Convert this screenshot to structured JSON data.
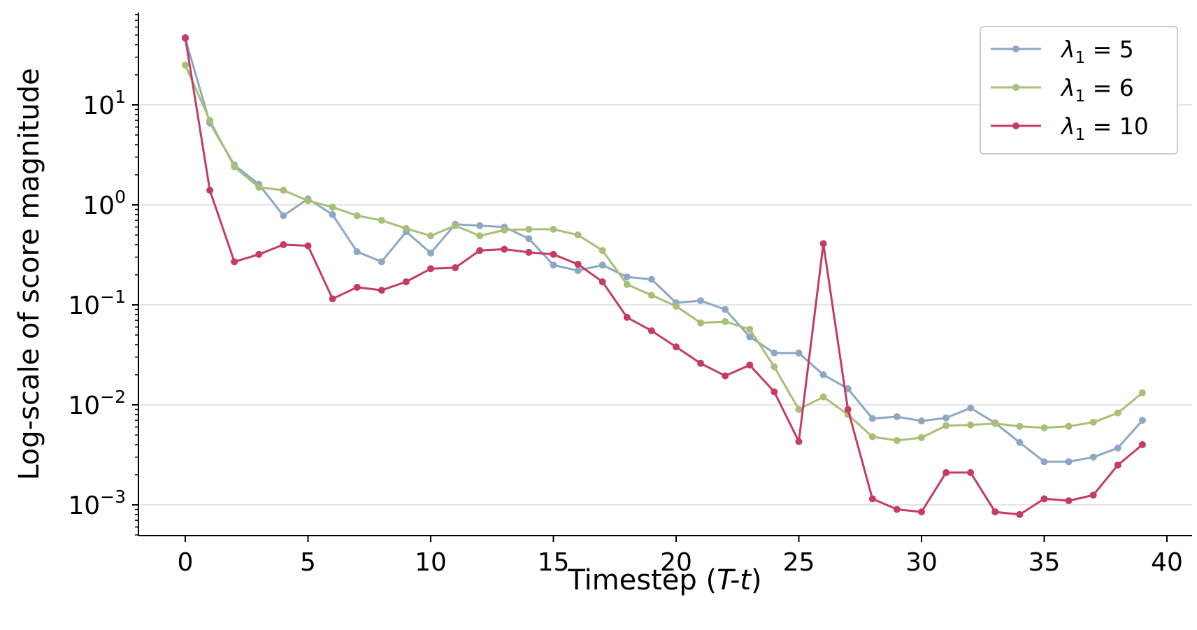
{
  "chart_data": {
    "type": "line",
    "title": "",
    "xlabel": {
      "prefix": "Timestep (",
      "italic": "T-t",
      "suffix": ")"
    },
    "ylabel": "Log-scale of score magnitude",
    "y_scale": "log",
    "xlim": [
      -2,
      41
    ],
    "ylim": [
      0.0005,
      85
    ],
    "x_ticks": [
      0,
      5,
      10,
      15,
      20,
      25,
      30,
      35,
      40
    ],
    "y_ticks": [
      {
        "value": 0.001,
        "base": "10",
        "exp": "−3"
      },
      {
        "value": 0.01,
        "base": "10",
        "exp": "−2"
      },
      {
        "value": 0.1,
        "base": "10",
        "exp": "−1"
      },
      {
        "value": 1,
        "base": "10",
        "exp": "0"
      },
      {
        "value": 10,
        "base": "10",
        "exp": "1"
      }
    ],
    "grid": "horizontal",
    "legend_position": "top-right",
    "x": [
      0,
      1,
      2,
      3,
      4,
      5,
      6,
      7,
      8,
      9,
      10,
      11,
      12,
      13,
      14,
      15,
      16,
      17,
      18,
      19,
      20,
      21,
      22,
      23,
      24,
      25,
      26,
      27,
      28,
      29,
      30,
      31,
      32,
      33,
      34,
      35,
      36,
      37,
      38,
      39
    ],
    "series": [
      {
        "name": "λ₁ = 5",
        "label_symbol": "λ",
        "label_sub": "1",
        "label_rest": " = 5",
        "color": "#8ca8c4",
        "values": [
          46,
          6.6,
          2.5,
          1.6,
          0.78,
          1.15,
          0.8,
          0.34,
          0.27,
          0.54,
          0.33,
          0.64,
          0.62,
          0.6,
          0.46,
          0.25,
          0.22,
          0.25,
          0.19,
          0.18,
          0.105,
          0.11,
          0.09,
          0.048,
          0.033,
          0.033,
          0.02,
          0.0145,
          0.0073,
          0.0076,
          0.0069,
          0.0074,
          0.0093,
          0.0066,
          0.0042,
          0.0027,
          0.0027,
          0.003,
          0.0037,
          0.007
        ]
      },
      {
        "name": "λ₁ = 6",
        "label_symbol": "λ",
        "label_sub": "1",
        "label_rest": " = 6",
        "color": "#a8bf76",
        "values": [
          25,
          7,
          2.4,
          1.5,
          1.4,
          1.1,
          0.95,
          0.78,
          0.7,
          0.58,
          0.49,
          0.62,
          0.49,
          0.56,
          0.57,
          0.57,
          0.5,
          0.35,
          0.16,
          0.125,
          0.097,
          0.066,
          0.068,
          0.057,
          0.024,
          0.009,
          0.012,
          0.008,
          0.0048,
          0.0044,
          0.0047,
          0.0062,
          0.0063,
          0.0065,
          0.0061,
          0.0059,
          0.0061,
          0.0067,
          0.0083,
          0.0132
        ]
      },
      {
        "name": "λ₁ = 10",
        "label_symbol": "λ",
        "label_sub": "1",
        "label_rest": " = 10",
        "color": "#c43c64",
        "values": [
          47,
          1.4,
          0.27,
          0.32,
          0.4,
          0.39,
          0.115,
          0.15,
          0.14,
          0.17,
          0.23,
          0.235,
          0.35,
          0.36,
          0.335,
          0.32,
          0.255,
          0.17,
          0.075,
          0.055,
          0.038,
          0.026,
          0.0195,
          0.025,
          0.0135,
          0.0043,
          0.41,
          0.009,
          0.00115,
          0.0009,
          0.00085,
          0.0021,
          0.0021,
          0.00085,
          0.0008,
          0.00115,
          0.0011,
          0.00125,
          0.0025,
          0.004
        ]
      }
    ]
  }
}
